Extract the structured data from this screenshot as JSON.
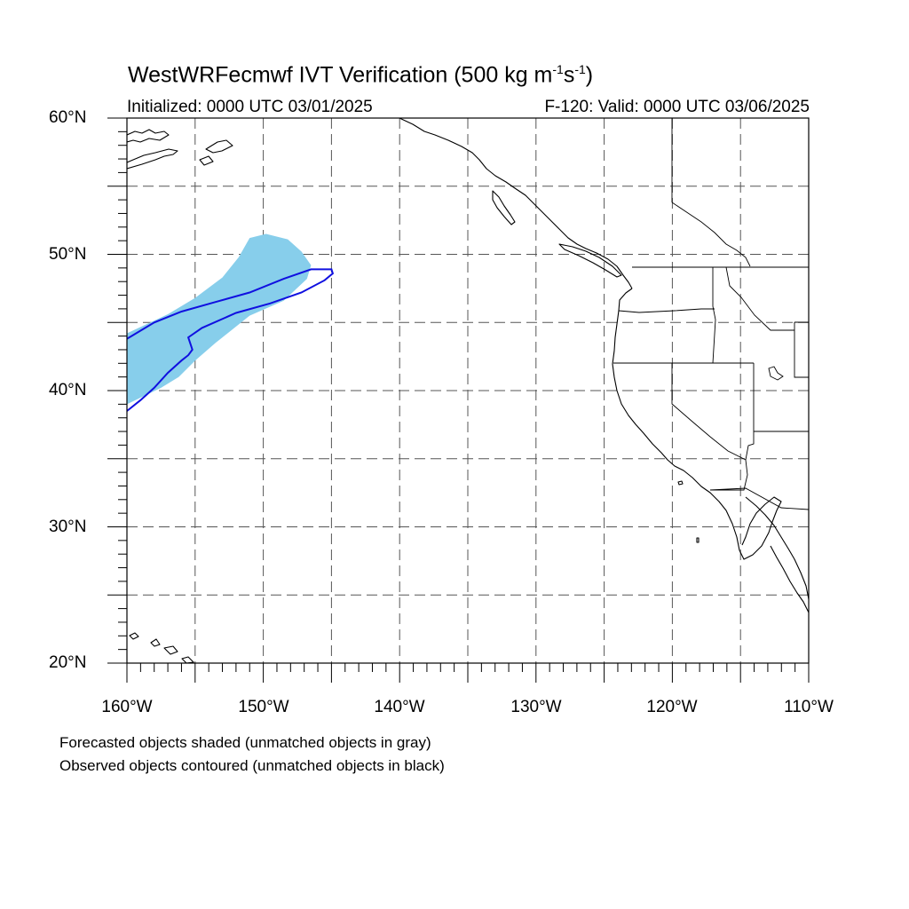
{
  "header": {
    "title_prefix": "WestWRFecmwf IVT Verification (500 kg m",
    "title_exp1": "-1",
    "title_mid": "s",
    "title_exp2": "-1",
    "title_suffix": ")",
    "initialized": "Initialized: 0000 UTC 03/01/2025",
    "valid": "F-120: Valid: 0000 UTC 03/06/2025"
  },
  "axes": {
    "lat_labels": [
      "60°N",
      "50°N",
      "40°N",
      "30°N",
      "20°N"
    ],
    "lon_labels": [
      "160°W",
      "150°W",
      "140°W",
      "130°W",
      "120°W",
      "110°W"
    ],
    "extent": {
      "lon_min": -160,
      "lon_max": -110,
      "lat_min": 20,
      "lat_max": 60
    },
    "grid_spacing_deg": 5,
    "grid_style": "dashed"
  },
  "legend": {
    "line1": "Forecasted objects shaded (unmatched objects in gray)",
    "line2": "Observed objects contoured (unmatched objects in black)"
  },
  "colors": {
    "forecast_fill": "#87ceeb",
    "observed_contour": "#1010e0",
    "coastline": "#000000",
    "grid": "#555555"
  },
  "objects": {
    "forecast_shaded_lonlat": [
      [
        -160,
        44.2
      ],
      [
        -157,
        45.6
      ],
      [
        -155,
        46.8
      ],
      [
        -153,
        48.3
      ],
      [
        -151.8,
        49.8
      ],
      [
        -151,
        51.2
      ],
      [
        -149.8,
        51.5
      ],
      [
        -148.2,
        51.1
      ],
      [
        -147.2,
        50.2
      ],
      [
        -146.5,
        49.2
      ],
      [
        -146.8,
        48.2
      ],
      [
        -148.5,
        46.6
      ],
      [
        -151,
        45.5
      ],
      [
        -153.5,
        43.5
      ],
      [
        -155,
        42.2
      ],
      [
        -156.2,
        41
      ],
      [
        -157.5,
        40.2
      ],
      [
        -160,
        39
      ]
    ],
    "observed_contour_lonlat": [
      [
        -160,
        43.8
      ],
      [
        -158,
        45
      ],
      [
        -156,
        45.8
      ],
      [
        -153.5,
        46.5
      ],
      [
        -151,
        47.2
      ],
      [
        -148.5,
        48.2
      ],
      [
        -146.5,
        48.9
      ],
      [
        -145,
        48.9
      ],
      [
        -144.9,
        48.6
      ],
      [
        -145.5,
        48.1
      ],
      [
        -147.2,
        47.2
      ],
      [
        -149.5,
        46.4
      ],
      [
        -152,
        45.7
      ],
      [
        -154.5,
        44.6
      ],
      [
        -155.5,
        43.9
      ],
      [
        -155.2,
        43
      ],
      [
        -155.5,
        42.6
      ],
      [
        -156,
        42.2
      ],
      [
        -157,
        41.3
      ],
      [
        -158,
        40.2
      ],
      [
        -159,
        39.3
      ],
      [
        -160,
        38.5
      ]
    ]
  }
}
